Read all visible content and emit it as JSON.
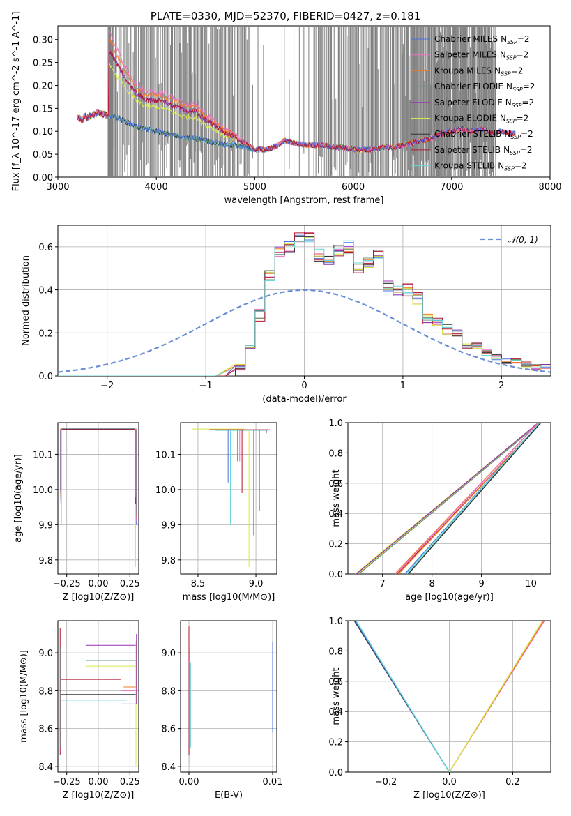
{
  "figure_title": "PLATE=0330, MJD=52370, FIBERID=0427, z=0.181",
  "colors": {
    "Chabrier MILES": "#4b6fe0",
    "Salpeter MILES": "#ee70c0",
    "Kroupa MILES": "#ee7a2a",
    "Chabrier ELODIE": "#6a9a7a",
    "Salpeter ELODIE": "#9932b4",
    "Kroupa ELODIE": "#d8e84a",
    "Chabrier STELIB": "#333333",
    "Salpeter STELIB": "#b01830",
    "Kroupa STELIB": "#6ad6d6",
    "data": "#808080",
    "normal": "#6a8ed6"
  },
  "chart_data": [
    {
      "type": "line",
      "panel": "spectrum",
      "title": "PLATE=0330, MJD=52370, FIBERID=0427, z=0.181",
      "xlabel": "wavelength [Angstrom, rest frame]",
      "ylabel": "Flux [f_λ 10^-17 erg cm^-2 s^-1 A^-1]",
      "xlim": [
        3000,
        8000
      ],
      "ylim": [
        0,
        0.33
      ],
      "xticks": [
        "3000",
        "4000",
        "5000",
        "6000",
        "7000",
        "8000"
      ],
      "yticks": [
        "0.00",
        "0.05",
        "0.10",
        "0.15",
        "0.20",
        "0.25",
        "0.30"
      ],
      "legend_position": "top-right",
      "legend": [
        "Chabrier MILES",
        "Salpeter MILES",
        "Kroupa MILES",
        "Chabrier ELODIE",
        "Salpeter ELODIE",
        "Kroupa ELODIE",
        "Chabrier STELIB",
        "Salpeter STELIB",
        "Kroupa STELIB"
      ],
      "legend_suffix_main": "N",
      "legend_suffix_sub": "SSP",
      "legend_suffix_val": "=2",
      "continuum_x": [
        3200,
        3300,
        3400,
        3500,
        3600,
        3700,
        3800,
        3900,
        4000,
        4100,
        4200,
        4300,
        4400,
        4500,
        4600,
        4700,
        4800,
        4900,
        5000,
        5100,
        5200,
        5300,
        5400,
        5500,
        5600,
        5700,
        5800,
        5900,
        6000,
        6100,
        6200,
        6300,
        6400,
        6500,
        6600,
        6700,
        6800,
        6900,
        7000,
        7100,
        7200,
        7300,
        7400,
        7500,
        7600
      ],
      "continuum_y": [
        0.14,
        0.13,
        0.14,
        0.135,
        0.13,
        0.12,
        0.11,
        0.105,
        0.1,
        0.095,
        0.09,
        0.085,
        0.085,
        0.08,
        0.075,
        0.07,
        0.07,
        0.065,
        0.06,
        0.06,
        0.065,
        0.08,
        0.075,
        0.07,
        0.07,
        0.07,
        0.065,
        0.065,
        0.06,
        0.06,
        0.06,
        0.065,
        0.065,
        0.07,
        0.075,
        0.08,
        0.085,
        0.095,
        0.1,
        0.105,
        0.1,
        0.105,
        0.095,
        0.1,
        0.095
      ],
      "blue_excess_x": [
        3520,
        3600,
        3700,
        3800,
        3900,
        4000,
        4100,
        4200,
        4300,
        4400,
        4500,
        4600,
        4700,
        4800,
        4900,
        5000
      ],
      "blue_excess_y": [
        0.16,
        0.13,
        0.1,
        0.08,
        0.07,
        0.075,
        0.075,
        0.07,
        0.065,
        0.065,
        0.05,
        0.04,
        0.03,
        0.02,
        0.01,
        0.0
      ]
    },
    {
      "type": "line",
      "panel": "residual-histogram",
      "xlabel": "(data-model)/error",
      "ylabel": "Normed distribution",
      "xlim": [
        -2.5,
        2.5
      ],
      "ylim": [
        0,
        0.7
      ],
      "xticks": [
        "−2",
        "−1",
        "0",
        "1",
        "2"
      ],
      "yticks": [
        "0.0",
        "0.2",
        "0.4",
        "0.6"
      ],
      "legend_position": "top-right",
      "legend": [
        "𝒩(0, 1)"
      ],
      "bin_edges": [
        -0.7,
        -0.6,
        -0.5,
        -0.4,
        -0.3,
        -0.2,
        -0.1,
        0.0,
        0.1,
        0.2,
        0.3,
        0.4,
        0.5,
        0.6,
        0.7,
        0.8,
        0.9,
        1.0,
        1.1,
        1.2,
        1.3,
        1.4,
        1.5,
        1.6,
        1.7,
        1.8,
        1.9,
        2.0,
        2.1,
        2.2,
        2.3,
        2.4,
        2.5
      ],
      "counts": [
        0.04,
        0.14,
        0.28,
        0.46,
        0.57,
        0.6,
        0.64,
        0.65,
        0.56,
        0.54,
        0.58,
        0.6,
        0.5,
        0.52,
        0.56,
        0.42,
        0.4,
        0.4,
        0.36,
        0.27,
        0.24,
        0.22,
        0.2,
        0.14,
        0.14,
        0.11,
        0.09,
        0.07,
        0.07,
        0.05,
        0.04,
        0.04
      ]
    },
    {
      "type": "scatter",
      "panel": "age-vs-Z",
      "xlabel": "Z [log10(Z/Z⊙)]",
      "ylabel": "age [log10(age/yr)]",
      "xlim": [
        -0.32,
        0.32
      ],
      "ylim": [
        9.76,
        10.19
      ],
      "xticks": [
        "−0.25",
        "0.00",
        "0.25"
      ],
      "yticks": [
        "9.8",
        "9.9",
        "10.0",
        "10.1"
      ]
    },
    {
      "type": "scatter",
      "panel": "age-vs-mass",
      "xlabel": "mass [log10(M/M⊙)]",
      "xlim": [
        8.35,
        9.18
      ],
      "ylim": [
        9.76,
        10.19
      ],
      "xticks": [
        "8.5",
        "9.0"
      ],
      "yticks": [
        "9.8",
        "9.9",
        "10.0",
        "10.1"
      ],
      "drops": [
        [
          8.76,
          10.02
        ],
        [
          8.78,
          9.9
        ],
        [
          8.81,
          9.9
        ],
        [
          8.84,
          10.08
        ],
        [
          8.86,
          10.08
        ],
        [
          8.88,
          9.99
        ],
        [
          8.94,
          9.78
        ],
        [
          8.98,
          9.87
        ],
        [
          9.03,
          9.94
        ],
        [
          9.09,
          10.16
        ]
      ]
    },
    {
      "type": "line",
      "panel": "cumulative-mass-weight-vs-age",
      "xlabel": "age [log10(age/yr)]",
      "ylabel": "mass weight",
      "xlim": [
        6.3,
        10.4
      ],
      "ylim": [
        0,
        1
      ],
      "xticks": [
        "7",
        "8",
        "9",
        "10"
      ],
      "yticks": [
        "0.0",
        "0.2",
        "0.4",
        "0.6",
        "0.8",
        "1.0"
      ],
      "lines": [
        [
          6.45,
          10.15
        ],
        [
          6.5,
          10.18
        ],
        [
          7.25,
          10.15
        ],
        [
          7.3,
          10.2
        ],
        [
          7.45,
          10.18
        ],
        [
          7.5,
          10.2
        ]
      ]
    },
    {
      "type": "scatter",
      "panel": "mass-vs-Z",
      "xlabel": "Z [log10(Z/Z⊙)]",
      "ylabel": "mass [log10(M/M⊙)]",
      "xlim": [
        -0.32,
        0.32
      ],
      "ylim": [
        8.37,
        9.17
      ],
      "xticks": [
        "−0.25",
        "0.00",
        "0.25"
      ],
      "yticks": [
        "8.4",
        "8.6",
        "8.8",
        "9.0"
      ],
      "segments": [
        [
          -0.1,
          0.3,
          9.04
        ],
        [
          -0.1,
          0.3,
          8.96
        ],
        [
          -0.1,
          0.3,
          8.93
        ],
        [
          -0.3,
          0.18,
          8.86
        ],
        [
          0.2,
          0.3,
          8.82
        ],
        [
          0.18,
          0.3,
          8.8
        ],
        [
          -0.3,
          0.3,
          8.78
        ],
        [
          -0.3,
          0.22,
          8.75
        ],
        [
          0.18,
          0.3,
          8.73
        ]
      ]
    },
    {
      "type": "scatter",
      "panel": "mass-vs-EBV",
      "xlabel": "E(B-V)",
      "xlim": [
        -0.001,
        0.0105
      ],
      "ylim": [
        8.37,
        9.17
      ],
      "xticks": [
        "0.00",
        "0.01"
      ],
      "yticks": [
        "8.4",
        "8.6",
        "8.8",
        "9.0"
      ]
    },
    {
      "type": "line",
      "panel": "cumulative-mass-weight-vs-Z",
      "xlabel": "Z [log10(Z/Z⊙)]",
      "ylabel": "mass weight",
      "xlim": [
        -0.32,
        0.32
      ],
      "ylim": [
        0,
        1
      ],
      "xticks": [
        "−0.2",
        "0.0",
        "0.2"
      ],
      "yticks": [
        "0.0",
        "0.2",
        "0.4",
        "0.6",
        "0.8",
        "1.0"
      ]
    }
  ]
}
